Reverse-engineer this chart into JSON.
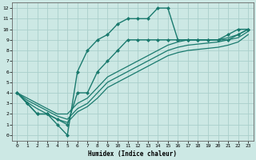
{
  "title": "",
  "xlabel": "Humidex (Indice chaleur)",
  "ylabel": "",
  "background_color": "#cce8e4",
  "grid_color": "#aacfcb",
  "line_color": "#1a7a6e",
  "xlim": [
    -0.5,
    23.5
  ],
  "ylim": [
    -0.5,
    12.5
  ],
  "xticks": [
    0,
    1,
    2,
    3,
    4,
    5,
    6,
    7,
    8,
    9,
    10,
    11,
    12,
    13,
    14,
    15,
    16,
    17,
    18,
    19,
    20,
    21,
    22,
    23
  ],
  "yticks": [
    0,
    1,
    2,
    3,
    4,
    5,
    6,
    7,
    8,
    9,
    10,
    11,
    12
  ],
  "lines": [
    {
      "x": [
        0,
        1,
        2,
        3,
        4,
        5,
        6,
        7,
        8,
        9,
        10,
        11,
        12,
        13,
        14,
        15,
        16,
        17,
        18,
        19,
        20,
        21,
        22,
        23
      ],
      "y": [
        4,
        3,
        2,
        2,
        1,
        0,
        6,
        8,
        9,
        9.5,
        10.5,
        11,
        11,
        11,
        12,
        12,
        9,
        9,
        9,
        9,
        9,
        9.5,
        10,
        10
      ],
      "marker": "D",
      "markersize": 2.0,
      "linewidth": 1.0
    },
    {
      "x": [
        0,
        1,
        2,
        3,
        4,
        5,
        6,
        7,
        8,
        9,
        10,
        11,
        12,
        13,
        14,
        15,
        16,
        17,
        18,
        19,
        20,
        21,
        22,
        23
      ],
      "y": [
        4,
        3,
        2,
        2,
        1.5,
        1,
        4,
        4,
        6,
        7,
        8,
        9,
        9,
        9,
        9,
        9,
        9,
        9,
        9,
        9,
        9,
        9,
        9.5,
        10
      ],
      "marker": "D",
      "markersize": 2.0,
      "linewidth": 1.0
    },
    {
      "x": [
        0,
        1,
        2,
        3,
        4,
        5,
        6,
        7,
        8,
        9,
        10,
        11,
        12,
        13,
        14,
        15,
        16,
        17,
        18,
        19,
        20,
        21,
        22,
        23
      ],
      "y": [
        4,
        3.5,
        3,
        2.5,
        2,
        2,
        3,
        3.5,
        4.5,
        5.5,
        6,
        6.5,
        7,
        7.5,
        8,
        8.5,
        8.8,
        9,
        9,
        9,
        9,
        9.2,
        9.5,
        10
      ],
      "marker": null,
      "markersize": 0,
      "linewidth": 0.9
    },
    {
      "x": [
        0,
        1,
        2,
        3,
        4,
        5,
        6,
        7,
        8,
        9,
        10,
        11,
        12,
        13,
        14,
        15,
        16,
        17,
        18,
        19,
        20,
        21,
        22,
        23
      ],
      "y": [
        4,
        3.3,
        2.8,
        2.3,
        1.8,
        1.5,
        2.5,
        3,
        4,
        5,
        5.5,
        6,
        6.5,
        7,
        7.5,
        8,
        8.3,
        8.5,
        8.6,
        8.7,
        8.8,
        9,
        9.2,
        9.8
      ],
      "marker": null,
      "markersize": 0,
      "linewidth": 0.9
    },
    {
      "x": [
        0,
        1,
        2,
        3,
        4,
        5,
        6,
        7,
        8,
        9,
        10,
        11,
        12,
        13,
        14,
        15,
        16,
        17,
        18,
        19,
        20,
        21,
        22,
        23
      ],
      "y": [
        4,
        3.1,
        2.5,
        2.0,
        1.5,
        1.2,
        2.2,
        2.7,
        3.5,
        4.5,
        5.0,
        5.5,
        6.0,
        6.5,
        7.0,
        7.5,
        7.8,
        8.0,
        8.1,
        8.2,
        8.3,
        8.5,
        8.8,
        9.5
      ],
      "marker": null,
      "markersize": 0,
      "linewidth": 0.9
    }
  ]
}
